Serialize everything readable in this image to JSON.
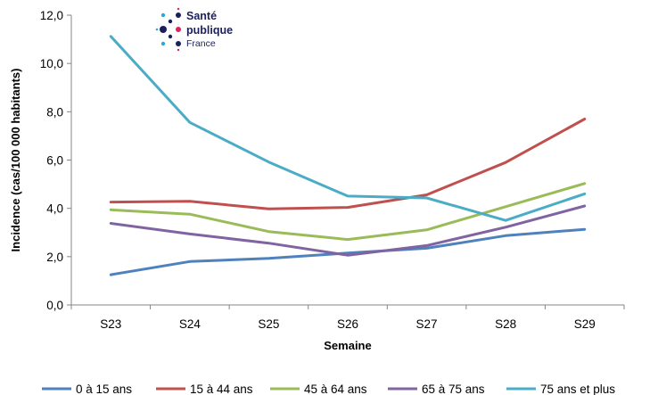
{
  "chart_data": {
    "type": "line",
    "categories": [
      "S23",
      "S24",
      "S25",
      "S26",
      "S27",
      "S28",
      "S29"
    ],
    "xlabel": "Semaine",
    "ylabel": "Incidence (cas/100 000 habitants)",
    "ylim": [
      0,
      12
    ],
    "yticks": [
      "0,0",
      "2,0",
      "4,0",
      "6,0",
      "8,0",
      "10,0",
      "12,0"
    ],
    "grid": false,
    "legend_position": "bottom",
    "series": [
      {
        "name": "0 à 15 ans",
        "color": "#4f81bd",
        "values": [
          1.25,
          1.8,
          1.93,
          2.15,
          2.35,
          2.87,
          3.13
        ]
      },
      {
        "name": "15 à 44 ans",
        "color": "#c0504d",
        "values": [
          4.26,
          4.29,
          3.98,
          4.04,
          4.56,
          5.9,
          7.7
        ]
      },
      {
        "name": "45 à 64 ans",
        "color": "#9bbb59",
        "values": [
          3.94,
          3.76,
          3.04,
          2.71,
          3.11,
          4.07,
          5.03
        ]
      },
      {
        "name": "65 à 75 ans",
        "color": "#8064a2",
        "values": [
          3.38,
          2.94,
          2.56,
          2.06,
          2.46,
          3.22,
          4.1
        ]
      },
      {
        "name": "75 ans et plus",
        "color": "#4bacc6",
        "values": [
          11.12,
          7.56,
          5.92,
          4.51,
          4.43,
          3.5,
          4.6
        ]
      }
    ]
  },
  "logo": {
    "line1": "Santé",
    "line2": "publique",
    "line3": "France",
    "colors": [
      "#1b1f5e",
      "#2aa8d6",
      "#e0225a"
    ]
  }
}
